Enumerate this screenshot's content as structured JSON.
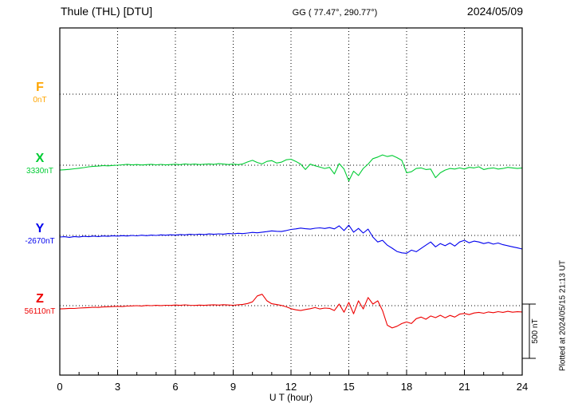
{
  "header": {
    "title": "Thule (THL)  [DTU]",
    "coords": "GG ( 77.47°, 290.77°)",
    "date": "2024/05/09"
  },
  "axis": {
    "xlabel": "U T (hour)",
    "ticks": [
      0,
      3,
      6,
      9,
      12,
      15,
      18,
      21,
      24
    ]
  },
  "scale_bar": {
    "label": "500 nT",
    "nT": 500
  },
  "plotted_at": "Plotted at 2024/05/15 21:13 UT",
  "components": [
    {
      "id": "F",
      "label": "F",
      "baseline_label": "0nT",
      "color": "#FFA500"
    },
    {
      "id": "X",
      "label": "X",
      "baseline_label": "3330nT",
      "color": "#00CC33"
    },
    {
      "id": "Y",
      "label": "Y",
      "baseline_label": "-2670nT",
      "color": "#0000EE"
    },
    {
      "id": "Z",
      "label": "Z",
      "baseline_label": "56110nT",
      "color": "#EE0000"
    }
  ],
  "chart_data": {
    "type": "line",
    "title": "Thule (THL) [DTU] magnetogram 2024/05/09",
    "xlabel": "U T (hour)",
    "x_min": 0,
    "x_max": 24,
    "x_step_hours": 0.25,
    "grid": "dotted at 3-hour intervals and at each component baseline",
    "scale_bar_nT": 500,
    "series": [
      {
        "name": "F",
        "baseline_nT": 0,
        "color": "#FFA500",
        "offsets_nT": []
      },
      {
        "name": "X",
        "baseline_nT": 3330,
        "color": "#00CC33",
        "offsets_nT": [
          -45,
          -42,
          -38,
          -33,
          -28,
          -22,
          -15,
          -10,
          -8,
          -4,
          -6,
          -2,
          0,
          4,
          8,
          3,
          6,
          2,
          5,
          8,
          4,
          7,
          3,
          6,
          9,
          5,
          12,
          7,
          10,
          6,
          9,
          12,
          8,
          14,
          10,
          6,
          10,
          5,
          12,
          30,
          45,
          25,
          12,
          35,
          42,
          20,
          28,
          50,
          55,
          35,
          10,
          -40,
          10,
          -5,
          -18,
          -30,
          -20,
          -80,
          15,
          -35,
          -145,
          -55,
          -95,
          -30,
          10,
          60,
          75,
          95,
          80,
          90,
          70,
          45,
          -70,
          -60,
          -30,
          -25,
          -40,
          -35,
          -115,
          -70,
          -45,
          -30,
          -35,
          -25,
          -35,
          -20,
          -25,
          -15,
          -40,
          -30,
          -25,
          -35,
          -30,
          -20,
          -25,
          -30,
          -25
        ]
      },
      {
        "name": "Y",
        "baseline_nT": -2670,
        "color": "#0000EE",
        "offsets_nT": [
          -15,
          -12,
          -18,
          -10,
          -14,
          -8,
          -12,
          -6,
          -10,
          -5,
          -8,
          -3,
          -6,
          -2,
          -5,
          0,
          -4,
          2,
          -2,
          3,
          0,
          5,
          2,
          6,
          3,
          8,
          5,
          10,
          7,
          12,
          8,
          14,
          10,
          15,
          12,
          18,
          15,
          20,
          17,
          22,
          28,
          24,
          30,
          35,
          42,
          38,
          36,
          45,
          55,
          60,
          68,
          62,
          58,
          66,
          70,
          64,
          72,
          60,
          88,
          45,
          95,
          30,
          65,
          22,
          58,
          -15,
          -60,
          -45,
          -90,
          -118,
          -148,
          -160,
          -165,
          -135,
          -150,
          -120,
          -90,
          -60,
          -105,
          -75,
          -95,
          -70,
          -98,
          -60,
          -45,
          -68,
          -52,
          -60,
          -75,
          -65,
          -80,
          -70,
          -85,
          -95,
          -105,
          -115,
          -125
        ]
      },
      {
        "name": "Z",
        "baseline_nT": 56110,
        "color": "#EE0000",
        "offsets_nT": [
          -30,
          -28,
          -25,
          -26,
          -22,
          -20,
          -18,
          -15,
          -16,
          -12,
          -10,
          -8,
          -6,
          -8,
          -4,
          -2,
          0,
          -3,
          2,
          0,
          3,
          1,
          4,
          2,
          6,
          3,
          7,
          4,
          2,
          5,
          3,
          6,
          8,
          5,
          9,
          6,
          4,
          8,
          12,
          20,
          35,
          90,
          105,
          45,
          18,
          10,
          2,
          -10,
          -28,
          -38,
          -45,
          -35,
          -28,
          -18,
          -30,
          -22,
          -25,
          -45,
          15,
          -60,
          30,
          -75,
          45,
          -30,
          75,
          15,
          45,
          -45,
          -180,
          -205,
          -190,
          -165,
          -150,
          -165,
          -120,
          -105,
          -125,
          -95,
          -110,
          -88,
          -112,
          -90,
          -105,
          -78,
          -72,
          -82,
          -68,
          -62,
          -70,
          -58,
          -65,
          -55,
          -62,
          -52,
          -60,
          -56,
          -58
        ]
      }
    ]
  }
}
